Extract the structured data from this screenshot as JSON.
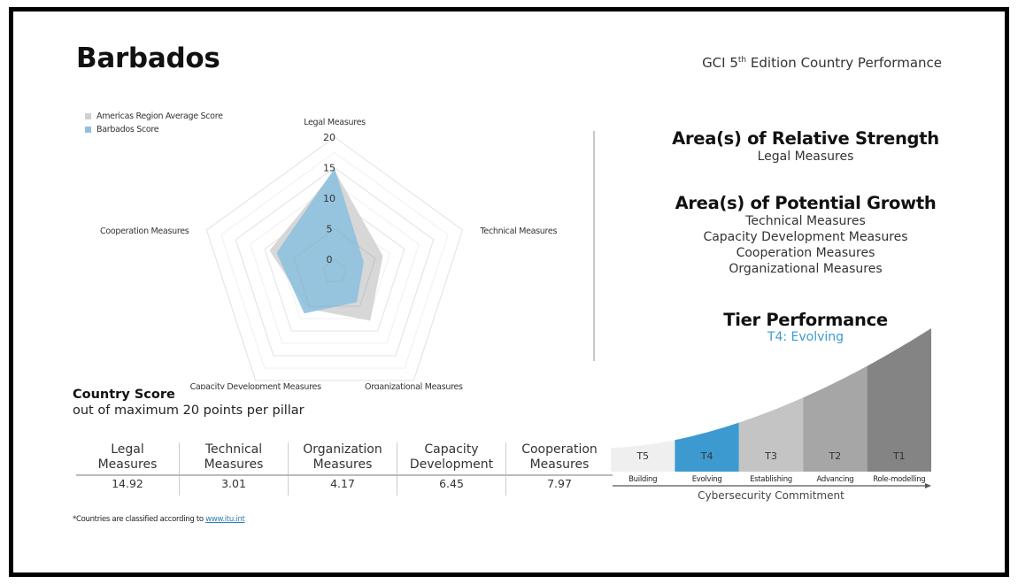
{
  "header": {
    "title": "Barbados",
    "subtitle_prefix": "GCI 5",
    "subtitle_sup": "th",
    "subtitle_suffix": " Edition Country Performance"
  },
  "chart_data": {
    "type": "radar",
    "axes": [
      "Legal Measures",
      "Technical Measures",
      "Organizational Measures",
      "Capacity Development Measures",
      "Cooperation Measures"
    ],
    "tick_labels": [
      "0",
      "5",
      "10",
      "15",
      "20"
    ],
    "ticks": [
      0,
      5,
      10,
      15,
      20
    ],
    "range": [
      -2,
      20
    ],
    "legend_position": "top-left",
    "series": [
      {
        "name": "Americas Region Average Score",
        "color": "#d0d0d0",
        "values": [
          14.5,
          6.3,
          7.9,
          5.5,
          9.2
        ]
      },
      {
        "name": "Barbados Score",
        "color": "#8fc1de",
        "values": [
          14.92,
          3.01,
          4.17,
          6.45,
          7.97
        ]
      }
    ]
  },
  "country_score": {
    "title": "Country Score",
    "subtitle": "out of maximum 20 points per pillar",
    "columns": [
      {
        "line1": "Legal",
        "line2": "Measures",
        "value": "14.92"
      },
      {
        "line1": "Technical",
        "line2": "Measures",
        "value": "3.01"
      },
      {
        "line1": "Organization",
        "line2": "Measures",
        "value": "4.17"
      },
      {
        "line1": "Capacity",
        "line2": "Development",
        "value": "6.45"
      },
      {
        "line1": "Cooperation",
        "line2": "Measures",
        "value": "7.97"
      }
    ]
  },
  "footnote": {
    "text": "*Countries are classified according to ",
    "link": "www.itu.int"
  },
  "strength": {
    "title": "Area(s) of Relative Strength",
    "items": [
      "Legal Measures"
    ]
  },
  "growth": {
    "title": "Area(s) of Potential Growth",
    "items": [
      "Technical Measures",
      "Capacity Development Measures",
      "Cooperation Measures",
      "Organizational Measures"
    ]
  },
  "tier": {
    "title": "Tier Performance",
    "current": "T4: Evolving",
    "highlight_color": "#3d9ad1",
    "axis_label": "Cybersecurity Commitment",
    "tiers": [
      {
        "code": "T5",
        "name": "Building",
        "color": "#efefef"
      },
      {
        "code": "T4",
        "name": "Evolving",
        "color": "#3d9ad1"
      },
      {
        "code": "T3",
        "name": "Establishing",
        "color": "#c4c4c4"
      },
      {
        "code": "T2",
        "name": "Advancing",
        "color": "#a6a6a6"
      },
      {
        "code": "T1",
        "name": "Role-modelling",
        "color": "#848484"
      }
    ]
  }
}
